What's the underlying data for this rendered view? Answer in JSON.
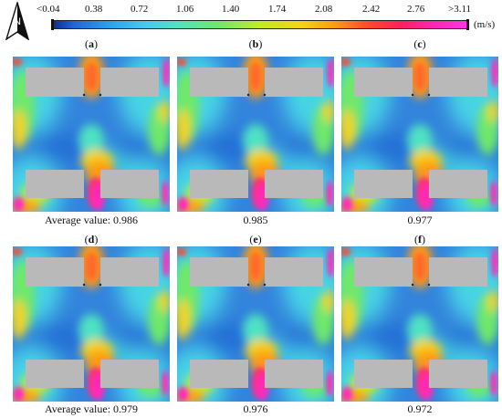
{
  "legend": {
    "ticks": [
      "<0.04",
      "0.38",
      "0.72",
      "1.06",
      "1.40",
      "1.74",
      "2.08",
      "2.42",
      "2.76",
      ">3.11"
    ],
    "unit": "(m/s)",
    "compass": "N"
  },
  "panels": [
    {
      "label": "a",
      "caption": "Average value: 0.986"
    },
    {
      "label": "b",
      "caption": "0.985"
    },
    {
      "label": "c",
      "caption": "0.977"
    },
    {
      "label": "d",
      "caption": "Average value: 0.979"
    },
    {
      "label": "e",
      "caption": "0.976"
    },
    {
      "label": "f",
      "caption": "0.972"
    }
  ],
  "colors": {
    "building": "#b9b9b9",
    "low_speed": "#1f63d8",
    "high_speed": "#ff2fb0"
  }
}
